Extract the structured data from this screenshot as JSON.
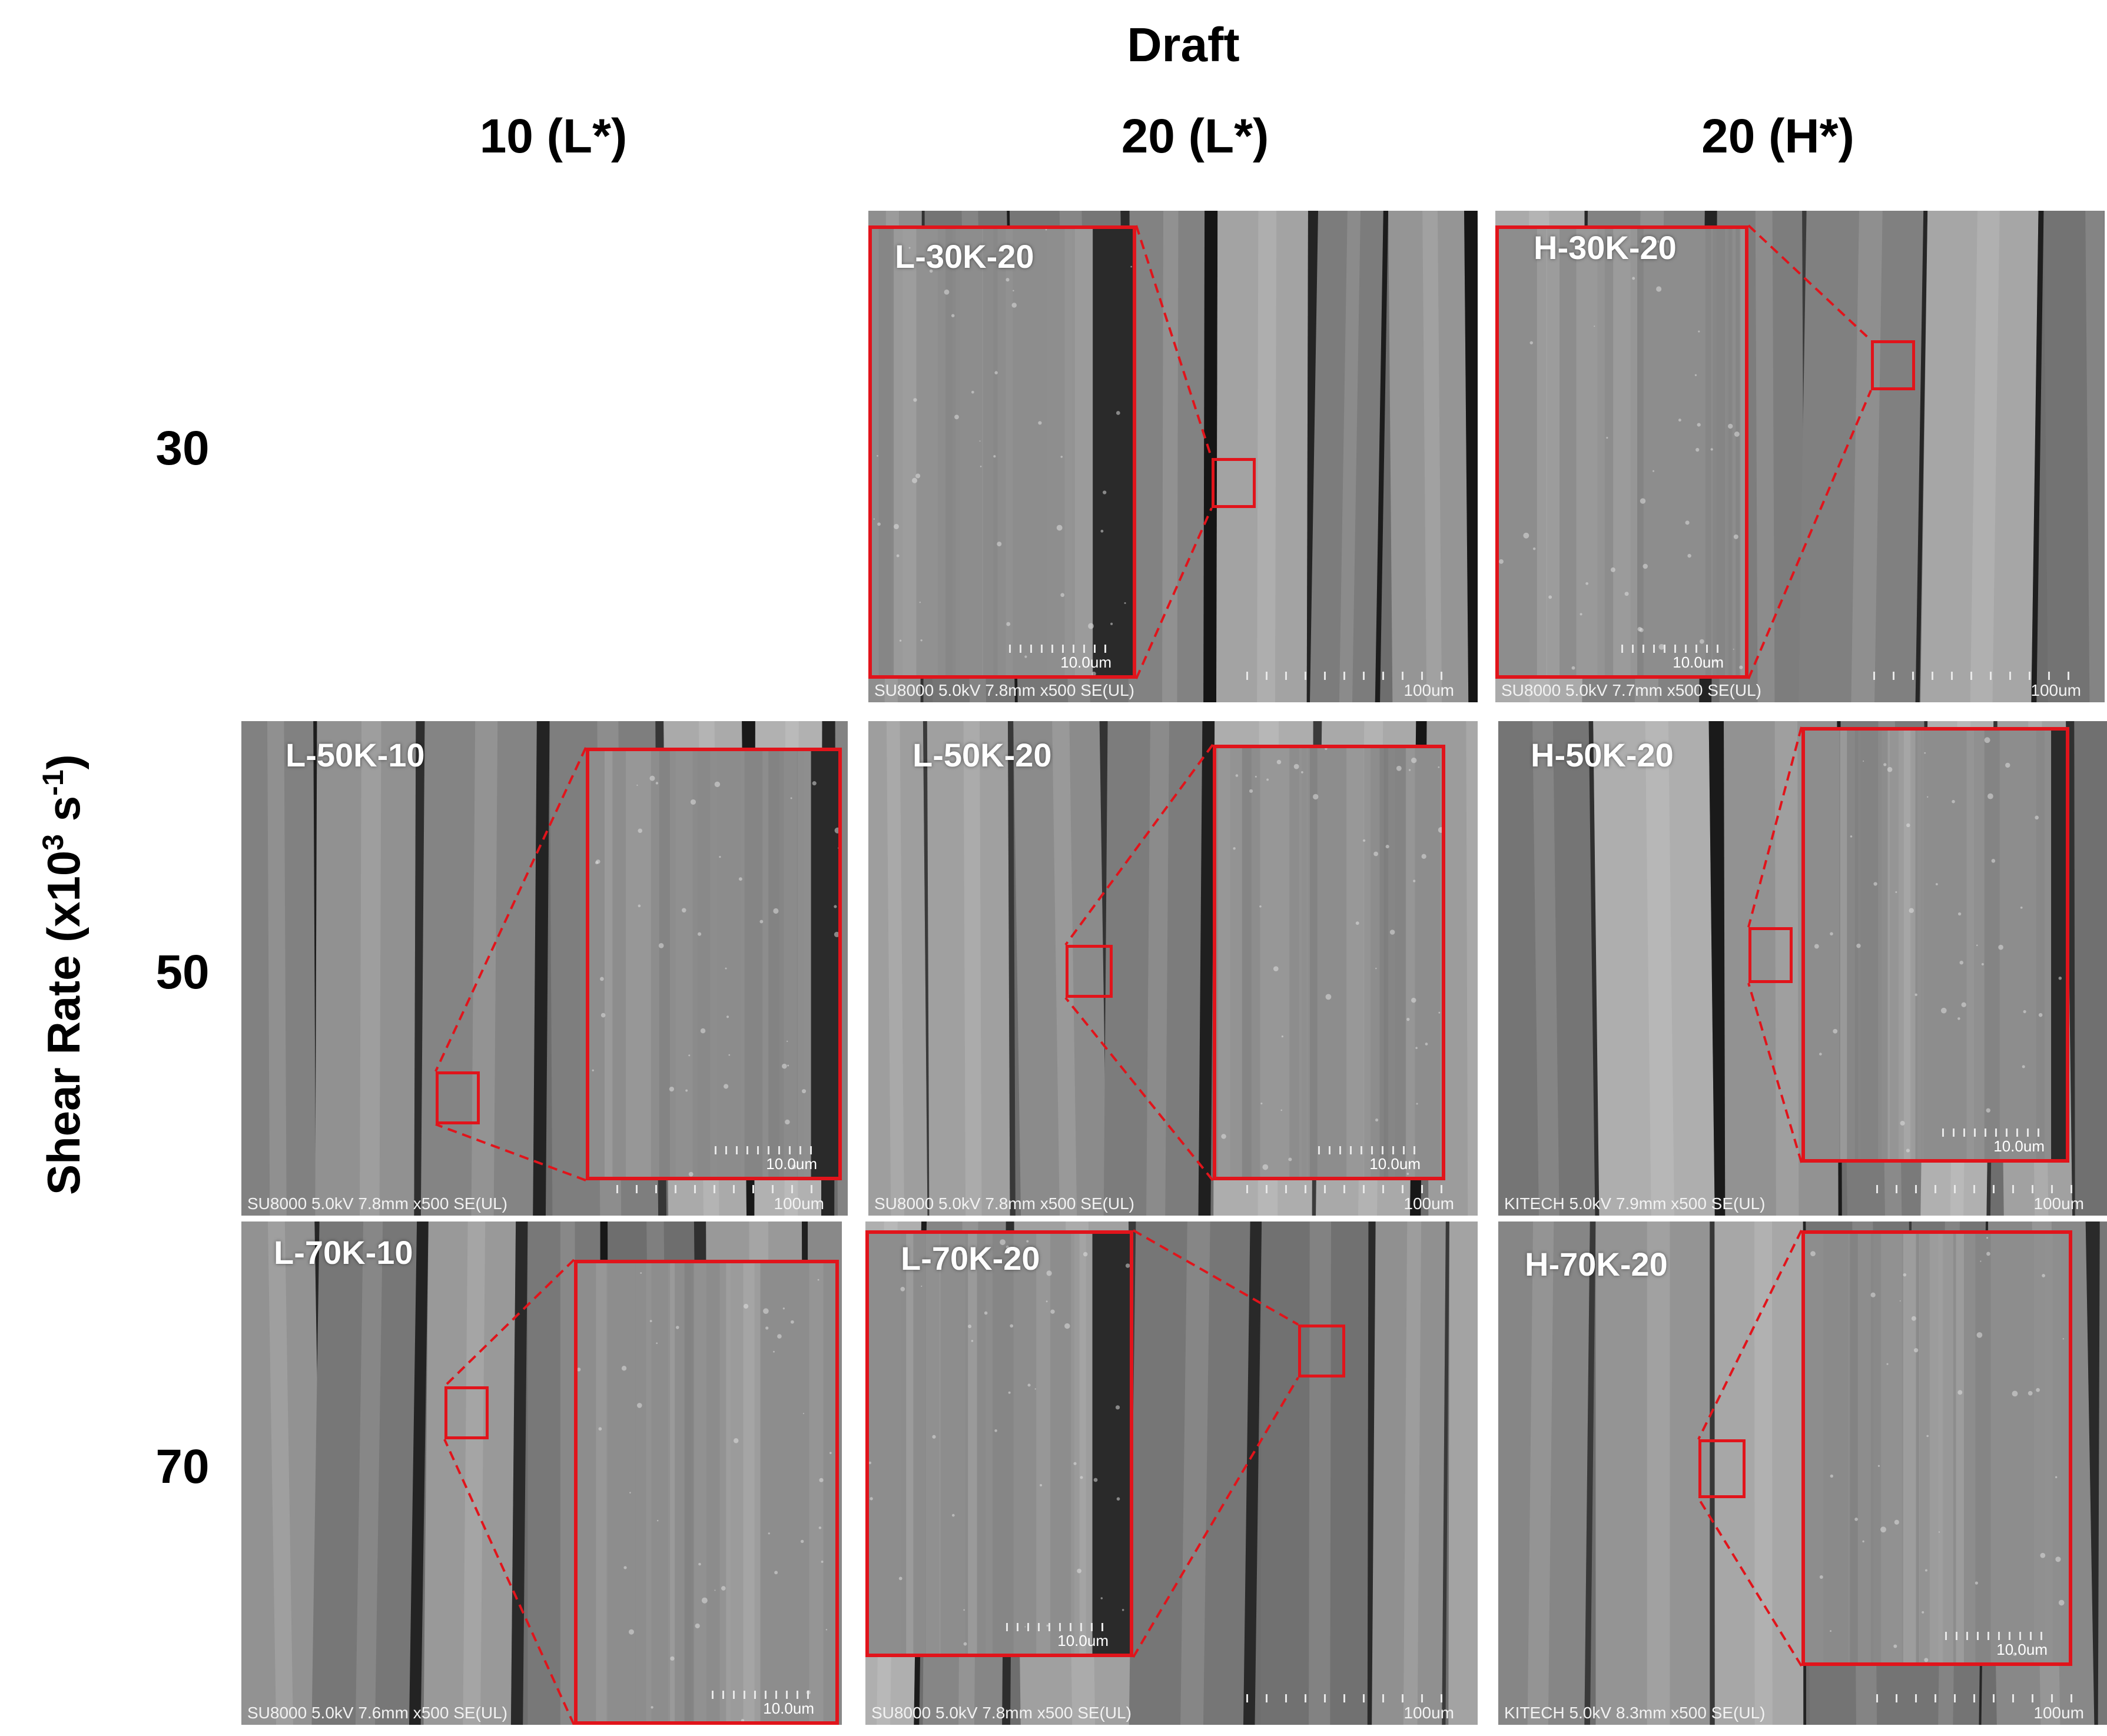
{
  "figure": {
    "column_group_title": "Draft",
    "column_headers": [
      "10 (L*)",
      "20 (L*)",
      "20 (H*)"
    ],
    "row_axis_title": "Shear Rate (x10",
    "row_axis_sup1": "3",
    "row_axis_mid": " s",
    "row_axis_sup2": "-1",
    "row_axis_end": ")",
    "row_headers": [
      "30",
      "50",
      "70"
    ]
  },
  "panels": {
    "p30_20L": {
      "label": "L-30K-20",
      "info": "SU8000 5.0kV 7.8mm x500 SE(UL)",
      "scale": "100um",
      "inset_scale": "10.0um"
    },
    "p30_20H": {
      "label": "H-30K-20",
      "info": "SU8000 5.0kV 7.7mm x500 SE(UL)",
      "scale": "100um",
      "inset_scale": "10.0um"
    },
    "p50_10L": {
      "label": "L-50K-10",
      "info": "SU8000 5.0kV 7.8mm x500 SE(UL)",
      "scale": "100um",
      "inset_scale": "10.0um"
    },
    "p50_20L": {
      "label": "L-50K-20",
      "info": "SU8000 5.0kV 7.8mm x500 SE(UL)",
      "scale": "100um",
      "inset_scale": "10.0um"
    },
    "p50_20H": {
      "label": "H-50K-20",
      "info": "KITECH 5.0kV 7.9mm x500 SE(UL)",
      "scale": "100um",
      "inset_scale": "10.0um"
    },
    "p70_10L": {
      "label": "L-70K-10",
      "info": "SU8000 5.0kV 7.6mm x500 SE(UL)",
      "scale": "100um",
      "inset_scale": "10.0um"
    },
    "p70_20L": {
      "label": "L-70K-20",
      "info": "SU8000 5.0kV 7.8mm x500 SE(UL)",
      "scale": "100um",
      "inset_scale": "10.0um"
    },
    "p70_20H": {
      "label": "H-70K-20",
      "info": "KITECH 5.0kV 8.3mm x500 SE(UL)",
      "scale": "100um",
      "inset_scale": "10.0um"
    }
  },
  "colors": {
    "highlight": "#e1141b",
    "sem_gray": "#7b7b7b"
  }
}
